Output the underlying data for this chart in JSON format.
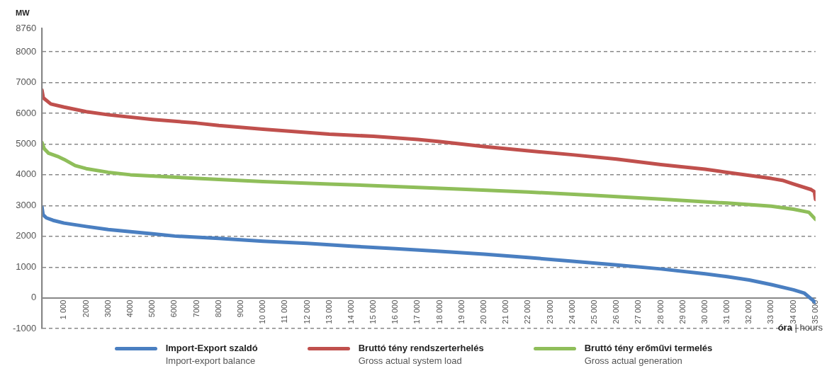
{
  "chart_data": {
    "type": "line",
    "ylabel": "MW",
    "xlabel": "óra | hours",
    "xlim": [
      0,
      35000
    ],
    "xticks": [
      {
        "value": 1000,
        "label": "1 000"
      },
      2000,
      3000,
      4000,
      5000,
      6000,
      7000,
      8000,
      9000,
      {
        "value": 10000,
        "label": "10 000"
      },
      {
        "value": 11000,
        "label": "11 000"
      },
      {
        "value": 12000,
        "label": "12 000"
      },
      {
        "value": 13000,
        "label": "13 000"
      },
      {
        "value": 14000,
        "label": "14 000"
      },
      {
        "value": 15000,
        "label": "15 000"
      },
      {
        "value": 16000,
        "label": "16 000"
      },
      {
        "value": 17000,
        "label": "17 000"
      },
      {
        "value": 18000,
        "label": "18 000"
      },
      {
        "value": 19000,
        "label": "19 000"
      },
      {
        "value": 20000,
        "label": "20 000"
      },
      {
        "value": 21000,
        "label": "21 000"
      },
      {
        "value": 22000,
        "label": "22 000"
      },
      {
        "value": 23000,
        "label": "23 000"
      },
      {
        "value": 24000,
        "label": "24 000"
      },
      {
        "value": 25000,
        "label": "25 000"
      },
      {
        "value": 26000,
        "label": "26 000"
      },
      {
        "value": 27000,
        "label": "27 000"
      },
      {
        "value": 28000,
        "label": "28 000"
      },
      {
        "value": 29000,
        "label": "29 000"
      },
      {
        "value": 30000,
        "label": "30 000"
      },
      {
        "value": 31000,
        "label": "31 000"
      },
      {
        "value": 32000,
        "label": "32 000"
      },
      {
        "value": 33000,
        "label": "33 000"
      },
      {
        "value": 34000,
        "label": "34 000"
      },
      {
        "value": 35000,
        "label": "35 000"
      }
    ],
    "ylim": [
      -1000,
      8760
    ],
    "yticks": [
      -1000,
      0,
      1000,
      2000,
      3000,
      4000,
      5000,
      6000,
      7000,
      8000,
      8760
    ],
    "grid": "y",
    "legend": "bottom",
    "marker": "none",
    "line_style": "solid",
    "series": [
      {
        "name": "Import-Export szaldó\nImport-export balance",
        "color": "#4a7fc1",
        "x": [
          0,
          50,
          200,
          500,
          1000,
          2000,
          3000,
          4000,
          5000,
          6000,
          8000,
          10000,
          12000,
          14000,
          16000,
          18000,
          20000,
          22000,
          24000,
          26000,
          28000,
          30000,
          31000,
          32000,
          33000,
          34000,
          34500,
          35000
        ],
        "values": [
          2950,
          2700,
          2600,
          2520,
          2430,
          2320,
          2220,
          2150,
          2080,
          2010,
          1930,
          1840,
          1770,
          1680,
          1600,
          1510,
          1420,
          1310,
          1190,
          1070,
          940,
          780,
          690,
          580,
          430,
          260,
          150,
          -150
        ]
      },
      {
        "name": "Bruttó tény rendszerterhelés\nGross actual system load",
        "color": "#c0504d",
        "x": [
          0,
          60,
          400,
          1000,
          2000,
          3000,
          5000,
          7000,
          8000,
          10000,
          13000,
          15000,
          17000,
          18000,
          19000,
          20000,
          22000,
          24000,
          26000,
          28000,
          30000,
          31000,
          32000,
          33000,
          33500,
          34000,
          34800,
          34950,
          35000
        ],
        "values": [
          6750,
          6500,
          6300,
          6200,
          6050,
          5950,
          5800,
          5680,
          5600,
          5480,
          5320,
          5250,
          5150,
          5080,
          5000,
          4920,
          4780,
          4650,
          4510,
          4330,
          4180,
          4080,
          3980,
          3880,
          3820,
          3700,
          3520,
          3450,
          3200
        ]
      },
      {
        "name": "Bruttó tény erőművi termelés\nGross actual generation",
        "color": "#8fbe5a",
        "x": [
          0,
          100,
          300,
          700,
          1000,
          1500,
          2000,
          3000,
          4000,
          6000,
          8000,
          10000,
          13000,
          16000,
          19000,
          22000,
          25000,
          28000,
          31000,
          33000,
          34000,
          34700,
          35000
        ],
        "values": [
          5050,
          4850,
          4700,
          4600,
          4500,
          4300,
          4200,
          4080,
          4000,
          3920,
          3850,
          3780,
          3700,
          3620,
          3530,
          3440,
          3330,
          3210,
          3080,
          2980,
          2880,
          2780,
          2550
        ]
      }
    ]
  }
}
